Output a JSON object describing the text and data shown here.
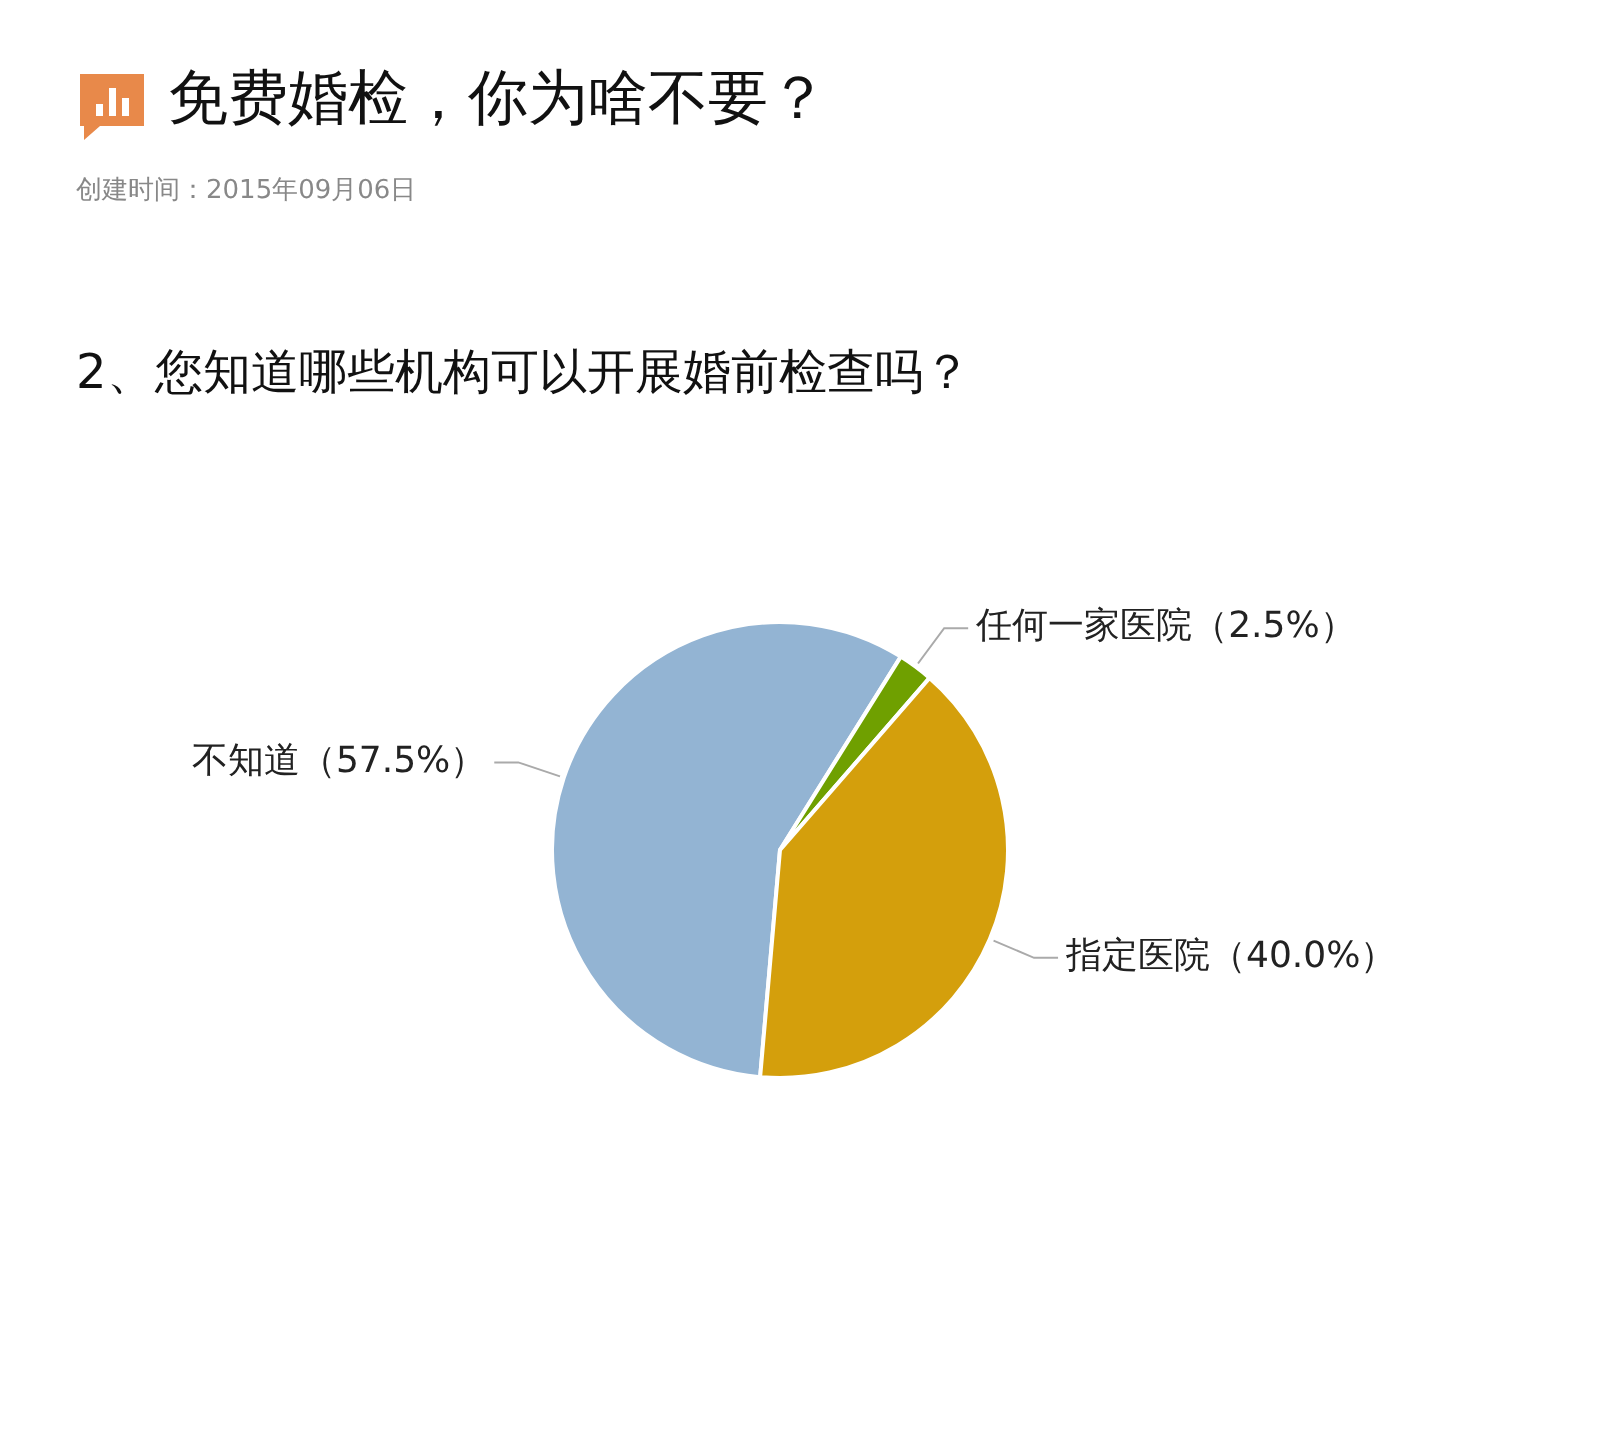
{
  "chart_data": {
    "type": "pie",
    "title": "免费婚检，你为啥不要？",
    "subtitle": "2、您知道哪些机构可以开展婚前检查吗？",
    "annotations": [
      "创建时间：2015年09月06日"
    ],
    "categories": [
      "不知道",
      "任何一家医院",
      "指定医院"
    ],
    "values": [
      57.5,
      2.5,
      40.0
    ],
    "colors": [
      "#93b4d3",
      "#6fa000",
      "#d49f0c"
    ],
    "value_labels": [
      "（57.5%）",
      "（2.5%）",
      "（40.0%）"
    ]
  }
}
